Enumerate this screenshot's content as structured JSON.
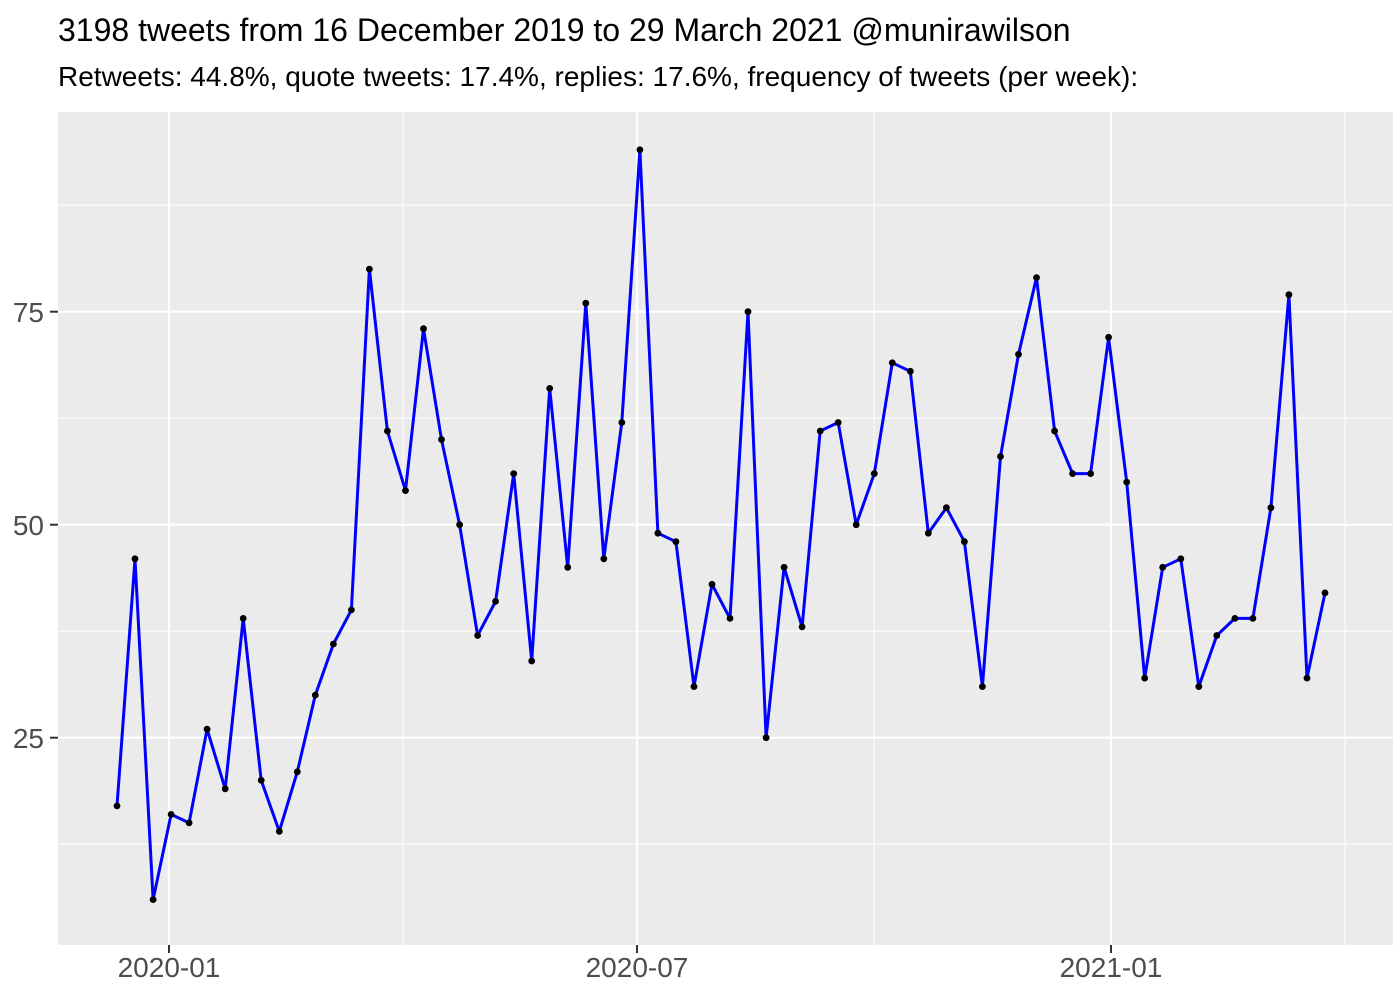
{
  "header": {
    "title": "3198 tweets from 16 December 2019 to 29 March 2021 @munirawilson",
    "subtitle": "Retweets: 44.8%, quote tweets: 17.4%, replies: 17.6%, frequency of tweets (per week):"
  },
  "chart_data": {
    "type": "line",
    "title": "3198 tweets from 16 December 2019 to 29 March 2021 @munirawilson",
    "subtitle": "Retweets: 44.8%, quote tweets: 17.4%, replies: 17.6%, frequency of tweets (per week):",
    "series_name": "tweets-per-week",
    "x": [
      "2019-12-16",
      "2019-12-23",
      "2019-12-30",
      "2020-01-06",
      "2020-01-13",
      "2020-01-20",
      "2020-01-27",
      "2020-02-03",
      "2020-02-10",
      "2020-02-17",
      "2020-02-24",
      "2020-03-02",
      "2020-03-09",
      "2020-03-16",
      "2020-03-23",
      "2020-03-30",
      "2020-04-06",
      "2020-04-13",
      "2020-04-20",
      "2020-04-27",
      "2020-05-04",
      "2020-05-11",
      "2020-05-18",
      "2020-05-25",
      "2020-06-01",
      "2020-06-08",
      "2020-06-15",
      "2020-06-22",
      "2020-06-29",
      "2020-07-06",
      "2020-07-13",
      "2020-07-20",
      "2020-07-27",
      "2020-08-03",
      "2020-08-10",
      "2020-08-17",
      "2020-08-24",
      "2020-08-31",
      "2020-09-07",
      "2020-09-14",
      "2020-09-21",
      "2020-09-28",
      "2020-10-05",
      "2020-10-12",
      "2020-10-19",
      "2020-10-26",
      "2020-11-02",
      "2020-11-09",
      "2020-11-16",
      "2020-11-23",
      "2020-11-30",
      "2020-12-07",
      "2020-12-14",
      "2020-12-21",
      "2020-12-28",
      "2021-01-04",
      "2021-01-11",
      "2021-01-18",
      "2021-01-25",
      "2021-02-01",
      "2021-02-08",
      "2021-02-15",
      "2021-02-22",
      "2021-03-01",
      "2021-03-08",
      "2021-03-15",
      "2021-03-22",
      "2021-03-29"
    ],
    "values": [
      17,
      46,
      6,
      16,
      15,
      26,
      19,
      39,
      20,
      14,
      21,
      30,
      36,
      40,
      80,
      61,
      54,
      73,
      60,
      50,
      37,
      41,
      56,
      34,
      66,
      45,
      76,
      46,
      62,
      94,
      49,
      48,
      31,
      43,
      39,
      75,
      25,
      45,
      38,
      61,
      62,
      50,
      56,
      69,
      68,
      49,
      52,
      48,
      31,
      58,
      70,
      79,
      61,
      56,
      56,
      72,
      55,
      32,
      45,
      46,
      31,
      37,
      39,
      39,
      52,
      77,
      32,
      42
    ],
    "xlabel": "",
    "ylabel": "",
    "x_ticks": [
      "2020-01",
      "2020-07",
      "2021-01"
    ],
    "x_minor_gridline_dates": [
      "2020-04",
      "2020-10",
      "2021-04"
    ],
    "y_ticks": [
      25,
      50,
      75
    ],
    "y_minor_gridlines": [
      12.5,
      37.5,
      62.5,
      87.5
    ],
    "ylim": [
      0.7,
      98.4
    ],
    "grid": "on",
    "legend": "none",
    "colors": {
      "line": "#0000FF",
      "point": "#000000",
      "panel_background": "#EBEBEB",
      "gridline": "#FFFFFF",
      "axis_text": "#4D4D4D",
      "tick_mark": "#333333",
      "title_text": "#000000",
      "page_background": "#FFFFFF"
    }
  }
}
